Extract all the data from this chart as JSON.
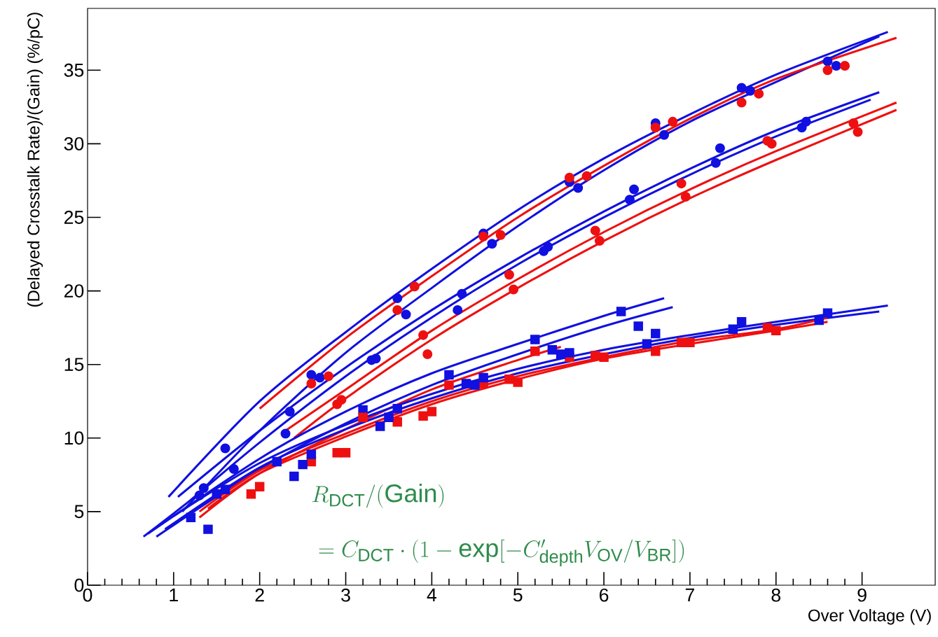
{
  "chart_data": {
    "type": "scatter",
    "xlabel": "Over Voltage (V)",
    "ylabel": "(Delayed Crosstalk Rate)/(Gain) (%/pC)",
    "xlim": [
      0,
      9.85
    ],
    "ylim": [
      0,
      39.2
    ],
    "xticks": [
      0,
      1,
      2,
      3,
      4,
      5,
      6,
      7,
      8,
      9
    ],
    "yticks": [
      0,
      5,
      10,
      15,
      20,
      25,
      30,
      35
    ],
    "annotations": [
      "R_{\\mathrm{DCT}}/(\\mathrm{Gain})",
      "= C_{\\mathrm{DCT}}\\cdot(1-\\exp[-C'_{\\mathrm{depth}}V_{\\mathrm{OV}}/V_{\\mathrm{BR}}])"
    ],
    "series": [
      {
        "type": "line",
        "color": "#1010e0",
        "x": [
          0.94,
          2,
          3,
          4,
          5,
          6,
          7,
          8,
          9.3
        ],
        "values": [
          6.0,
          12.5,
          17.2,
          21.5,
          25.5,
          29.0,
          32.0,
          34.7,
          37.6
        ]
      },
      {
        "type": "line",
        "color": "#1010e0",
        "x": [
          1.1,
          2,
          3,
          4,
          5,
          6,
          7,
          8,
          9.2
        ],
        "values": [
          5.0,
          10.5,
          15.8,
          20.2,
          24.4,
          28.2,
          31.5,
          34.2,
          37.3
        ]
      },
      {
        "type": "line",
        "color": "#ee1010",
        "x": [
          2,
          3,
          4,
          5,
          6,
          7,
          8,
          9.4
        ],
        "values": [
          12.0,
          16.8,
          21.0,
          25.0,
          28.5,
          31.7,
          34.4,
          37.2
        ]
      },
      {
        "type": "line",
        "color": "#1010e0",
        "x": [
          1.05,
          2,
          3,
          4,
          5,
          6,
          7,
          8,
          9.2
        ],
        "values": [
          6.0,
          10.5,
          14.8,
          18.7,
          22.2,
          25.4,
          28.3,
          30.9,
          33.5
        ]
      },
      {
        "type": "line",
        "color": "#1010e0",
        "x": [
          0.65,
          1.2,
          2,
          3,
          4,
          5,
          6,
          7,
          8,
          9.1
        ],
        "values": [
          3.3,
          5.8,
          9.7,
          14.2,
          18.2,
          21.8,
          25.0,
          27.9,
          30.5,
          33.0
        ]
      },
      {
        "type": "line",
        "color": "#ee1010",
        "x": [
          2.3,
          3,
          4,
          5,
          6,
          7,
          8,
          9.4
        ],
        "values": [
          10.5,
          13.3,
          17.3,
          20.8,
          24.0,
          26.9,
          29.5,
          32.8
        ]
      },
      {
        "type": "line",
        "color": "#ee1010",
        "x": [
          2.4,
          3,
          4,
          5,
          6,
          7,
          8,
          9.4
        ],
        "values": [
          10.0,
          12.7,
          16.7,
          20.2,
          23.4,
          26.3,
          28.9,
          32.3
        ]
      },
      {
        "type": "line",
        "color": "#1010e0",
        "x": [
          0.7,
          2,
          3,
          4,
          5,
          6,
          6.7
        ],
        "values": [
          3.5,
          8.6,
          11.8,
          14.4,
          16.4,
          18.3,
          19.5
        ]
      },
      {
        "type": "line",
        "color": "#1010e0",
        "x": [
          0.8,
          2,
          3,
          4,
          5,
          6,
          6.8
        ],
        "values": [
          3.3,
          7.9,
          11.0,
          13.6,
          15.7,
          17.6,
          18.9
        ]
      },
      {
        "type": "line",
        "color": "#ee1010",
        "x": [
          1.3,
          2,
          3,
          4,
          5,
          5.5
        ],
        "values": [
          4.6,
          7.6,
          10.6,
          13.3,
          15.3,
          16.2
        ]
      },
      {
        "type": "line",
        "color": "#1010e0",
        "x": [
          1,
          2,
          3,
          4,
          5,
          6,
          7,
          8,
          9.3
        ],
        "values": [
          4.7,
          8.3,
          10.9,
          13.0,
          14.7,
          16.0,
          17.0,
          17.9,
          19.0
        ]
      },
      {
        "type": "line",
        "color": "#1010e0",
        "x": [
          0.9,
          2,
          3,
          4,
          5,
          6,
          7,
          8,
          9.2
        ],
        "values": [
          3.8,
          8.0,
          10.6,
          12.7,
          14.4,
          15.7,
          16.8,
          17.7,
          18.6
        ]
      },
      {
        "type": "line",
        "color": "#ee1010",
        "x": [
          1.3,
          2,
          3,
          4,
          5,
          6,
          7,
          8,
          8.6
        ],
        "values": [
          5.0,
          7.8,
          10.3,
          12.5,
          14.2,
          15.5,
          16.6,
          17.4,
          18.2
        ]
      },
      {
        "type": "line",
        "color": "#ee1010",
        "x": [
          1.4,
          2,
          3,
          4,
          5,
          6,
          7,
          8,
          8.6
        ],
        "values": [
          5.2,
          7.6,
          10.1,
          12.3,
          14.0,
          15.4,
          16.4,
          17.3,
          17.9
        ]
      },
      {
        "marker": "circle",
        "color": "#1010e0",
        "x": [
          1.6,
          2.6,
          3.6,
          4.6,
          5.6,
          6.6,
          7.6,
          8.6
        ],
        "values": [
          9.3,
          14.3,
          19.5,
          23.9,
          27.4,
          31.4,
          33.8,
          35.6
        ]
      },
      {
        "marker": "circle",
        "color": "#1010e0",
        "x": [
          1.7,
          2.7,
          3.7,
          4.7,
          5.7,
          6.7,
          7.7,
          8.7
        ],
        "values": [
          7.9,
          14.1,
          18.4,
          23.2,
          27.0,
          30.6,
          33.6,
          35.3
        ]
      },
      {
        "marker": "circle",
        "color": "#ee1010",
        "x": [
          2.6,
          3.6,
          4.6,
          5.6,
          6.6,
          7.6,
          8.6
        ],
        "values": [
          13.7,
          18.7,
          23.7,
          27.7,
          31.1,
          32.8,
          35.0
        ]
      },
      {
        "marker": "circle",
        "color": "#ee1010",
        "x": [
          2.8,
          3.8,
          4.8,
          5.8,
          6.8,
          7.8,
          8.8
        ],
        "values": [
          14.2,
          20.3,
          23.8,
          27.8,
          31.5,
          33.4,
          35.3
        ]
      },
      {
        "marker": "circle",
        "color": "#1010e0",
        "x": [
          1.3,
          2.3,
          3.3,
          4.3,
          5.3,
          6.3,
          7.3,
          8.3
        ],
        "values": [
          6.1,
          10.3,
          15.3,
          18.7,
          22.7,
          26.2,
          28.7,
          31.1
        ]
      },
      {
        "marker": "circle",
        "color": "#1010e0",
        "x": [
          1.35,
          2.35,
          3.35,
          4.35,
          5.35,
          6.35,
          7.35,
          8.35
        ],
        "values": [
          6.6,
          11.8,
          15.4,
          19.8,
          23.0,
          26.9,
          29.7,
          31.5
        ]
      },
      {
        "marker": "circle",
        "color": "#ee1010",
        "x": [
          2.9,
          3.9,
          4.9,
          5.9,
          6.9,
          7.9,
          8.9
        ],
        "values": [
          12.3,
          17.0,
          21.1,
          24.1,
          27.3,
          30.2,
          31.4
        ]
      },
      {
        "marker": "circle",
        "color": "#ee1010",
        "x": [
          2.95,
          3.95,
          4.95,
          5.95,
          6.95,
          7.95,
          8.95
        ],
        "values": [
          12.6,
          15.7,
          20.1,
          23.4,
          26.4,
          30.0,
          30.8
        ]
      },
      {
        "marker": "square",
        "color": "#1010e0",
        "x": [
          1.2,
          2.2,
          3.2,
          4.2,
          5.2,
          6.2
        ],
        "values": [
          4.6,
          8.4,
          11.9,
          14.3,
          16.7,
          18.6
        ]
      },
      {
        "marker": "square",
        "color": "#1010e0",
        "x": [
          1.4,
          2.4,
          3.4,
          4.4,
          5.4,
          6.4
        ],
        "values": [
          3.8,
          7.4,
          10.8,
          13.7,
          16.0,
          17.6
        ]
      },
      {
        "marker": "square",
        "color": "#ee1010",
        "x": [
          2.6,
          3.2,
          3.6,
          4.2,
          4.6,
          5.2,
          5.6,
          6.6
        ],
        "values": [
          8.4,
          11.4,
          11.1,
          13.6,
          13.7,
          15.9,
          15.5,
          15.9
        ]
      },
      {
        "marker": "square",
        "color": "#1010e0",
        "x": [
          1.5,
          2.5,
          3.5,
          4.5,
          5.5,
          6.5,
          7.5,
          8.5
        ],
        "values": [
          6.2,
          8.2,
          11.4,
          13.6,
          15.7,
          16.4,
          17.4,
          18.0
        ]
      },
      {
        "marker": "square",
        "color": "#1010e0",
        "x": [
          1.6,
          2.6,
          3.6,
          4.6,
          5.6,
          6.6,
          7.6,
          8.6
        ],
        "values": [
          6.5,
          8.9,
          12.0,
          14.1,
          15.8,
          17.1,
          17.9,
          18.5
        ]
      },
      {
        "marker": "square",
        "color": "#ee1010",
        "x": [
          1.9,
          2.9,
          3.9,
          4.9,
          5.9,
          6.9,
          7.9
        ],
        "values": [
          6.2,
          9.0,
          11.5,
          14.0,
          15.6,
          16.5,
          17.5
        ]
      },
      {
        "marker": "square",
        "color": "#ee1010",
        "x": [
          2.0,
          3.0,
          4.0,
          5.0,
          6.0,
          7.0,
          8.0
        ],
        "values": [
          6.7,
          9.0,
          11.8,
          13.8,
          15.5,
          16.5,
          17.3
        ]
      }
    ]
  }
}
